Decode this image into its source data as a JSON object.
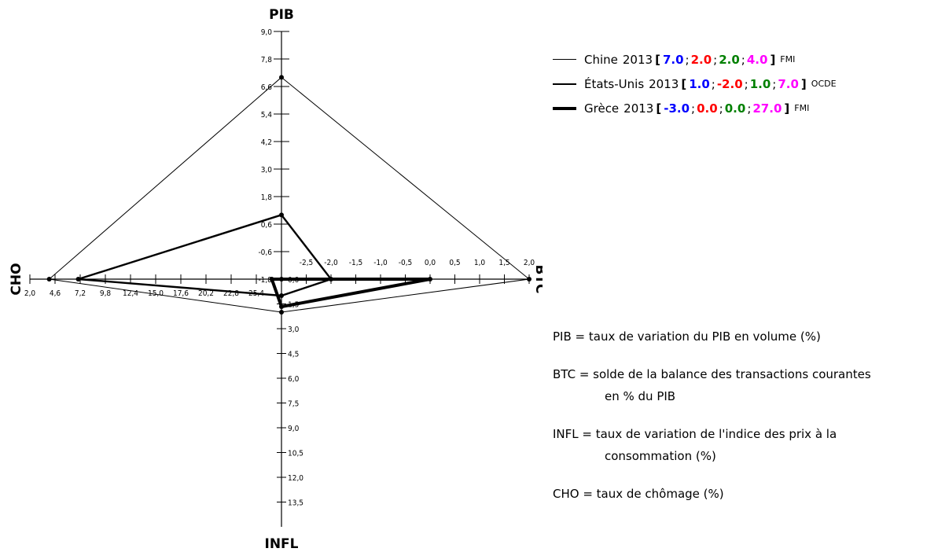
{
  "chart_data": {
    "type": "radar",
    "axes": [
      {
        "key": "pib",
        "title": "PIB",
        "direction": "up",
        "min": -1.8,
        "max": 9.0,
        "ticks": [
          -1.8,
          -0.6,
          0.6,
          1.8,
          3.0,
          4.2,
          5.4,
          6.6,
          7.8,
          9.0
        ],
        "tick_labels": [
          "-1,8",
          "-0,6",
          "0,6",
          "1,8",
          "3,0",
          "4,2",
          "5,4",
          "6,6",
          "7,8",
          "9,0"
        ]
      },
      {
        "key": "btc",
        "title": "BTC",
        "direction": "right",
        "min": -3.0,
        "max": 2.0,
        "ticks": [
          -2.5,
          -2.0,
          -1.5,
          -1.0,
          -0.5,
          0.0,
          0.5,
          1.0,
          1.5,
          2.0
        ],
        "tick_labels": [
          "-2,5",
          "-2,0",
          "-1,5",
          "-1,0",
          "-0,5",
          "0,0",
          "0,5",
          "1,0",
          "1,5",
          "2,0"
        ]
      },
      {
        "key": "infl",
        "title": "INFL",
        "direction": "down",
        "min": 0.0,
        "max": 15.0,
        "ticks": [
          0.0,
          1.5,
          3.0,
          4.5,
          6.0,
          7.5,
          9.0,
          10.5,
          12.0,
          13.5
        ],
        "tick_labels": [
          "0,0",
          "1,5",
          "3,0",
          "4,5",
          "6,0",
          "7,5",
          "9,0",
          "10,5",
          "12,0",
          "13,5"
        ]
      },
      {
        "key": "cho",
        "title": "CHO",
        "direction": "left",
        "min": 28.0,
        "max": 2.0,
        "ticks": [
          2.0,
          4.6,
          7.2,
          9.8,
          12.4,
          15.0,
          17.6,
          20.2,
          22.8,
          25.4
        ],
        "tick_labels": [
          "2,0",
          "4,6",
          "7,2",
          "9,8",
          "12,4",
          "15,0",
          "17,6",
          "20,2",
          "22,8",
          "25,4"
        ]
      }
    ],
    "series": [
      {
        "name": "Chine",
        "year": "2013",
        "source": "FMI",
        "line_width": 1,
        "values": {
          "pib": 7.0,
          "btc": 2.0,
          "infl": 2.0,
          "cho": 4.0
        }
      },
      {
        "name": "États-Unis",
        "year": "2013",
        "source": "OCDE",
        "line_width": 2.4,
        "values": {
          "pib": 1.0,
          "btc": -2.0,
          "infl": 1.0,
          "cho": 7.0
        }
      },
      {
        "name": "Grèce",
        "year": "2013",
        "source": "FMI",
        "line_width": 4,
        "values": {
          "pib": -3.0,
          "btc": 0.0,
          "infl": 0.0,
          "cho": 27.0
        }
      }
    ],
    "legend": {
      "placement": "top-right",
      "rows": [
        {
          "name": "Chine",
          "year": "2013",
          "values": [
            "7.0",
            "2.0",
            "2.0",
            "4.0"
          ],
          "source": "FMI"
        },
        {
          "name": "États-Unis",
          "year": "2013",
          "values": [
            "1.0",
            "-2.0",
            "1.0",
            "7.0"
          ],
          "source": "OCDE"
        },
        {
          "name": "Grèce",
          "year": "2013",
          "values": [
            "-3.0",
            "0.0",
            "0.0",
            "27.0"
          ],
          "source": "FMI"
        }
      ],
      "value_colors": [
        "#0000ff",
        "#ff0000",
        "#008000",
        "#ff00ff"
      ]
    },
    "grid": false
  },
  "definitions": {
    "pib": "PIB = taux de variation du PIB en volume (%)",
    "btc_line1": "BTC = solde de la balance des transactions courantes",
    "btc_line2": "en % du PIB",
    "infl_line1": "INFL = taux de variation de l'indice des prix à la",
    "infl_line2": "consommation (%)",
    "cho": "CHO = taux de chômage (%)"
  }
}
